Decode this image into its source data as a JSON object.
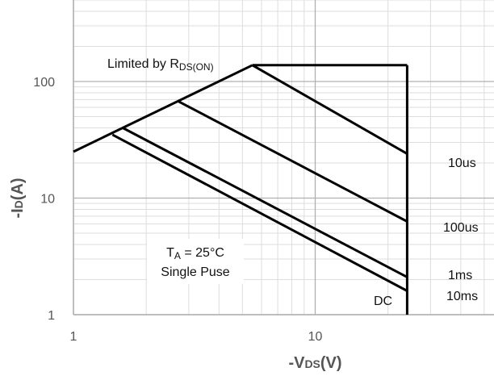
{
  "chart_data": {
    "type": "line",
    "xscale": "log",
    "yscale": "log",
    "xlim": [
      1,
      100
    ],
    "ylim": [
      1,
      500
    ],
    "grid": true,
    "xlabel": {
      "prefix": "-V",
      "sub": "DS",
      "suffix": "(V)"
    },
    "ylabel": {
      "prefix": "-I",
      "sub": "D",
      "suffix": "(A)"
    },
    "x_ticks": [
      {
        "value": 1,
        "label": "1"
      },
      {
        "value": 10,
        "label": "10"
      }
    ],
    "y_ticks": [
      {
        "value": 1,
        "label": "1"
      },
      {
        "value": 10,
        "label": "10"
      },
      {
        "value": 100,
        "label": "100"
      }
    ],
    "rds_limit": {
      "label_main": "Limited by R",
      "label_sub": "DS(ON)",
      "points": [
        [
          1,
          25
        ],
        [
          5.5,
          138
        ]
      ]
    },
    "current_limit": {
      "points": [
        [
          5.5,
          138
        ],
        [
          24,
          138
        ]
      ]
    },
    "voltage_limit": {
      "points": [
        [
          24,
          138
        ],
        [
          24,
          1
        ]
      ]
    },
    "series": [
      {
        "name": "10us",
        "points": [
          [
            5.5,
            138
          ],
          [
            24,
            24
          ]
        ]
      },
      {
        "name": "100us",
        "points": [
          [
            2.7,
            68
          ],
          [
            24,
            6.3
          ]
        ]
      },
      {
        "name": "1ms",
        "points": [
          [
            1.6,
            40
          ],
          [
            24,
            2.1
          ]
        ]
      },
      {
        "name": "10ms",
        "points": [
          [
            1.45,
            35
          ],
          [
            24,
            1.6
          ]
        ]
      },
      {
        "name": "DC",
        "points": [
          [
            1.45,
            35
          ],
          [
            24,
            1.6
          ]
        ]
      }
    ],
    "annotation": {
      "line1_main": "T",
      "line1_sub": "A",
      "line1_rest": " = 25°C",
      "line2": "Single Puse"
    }
  }
}
